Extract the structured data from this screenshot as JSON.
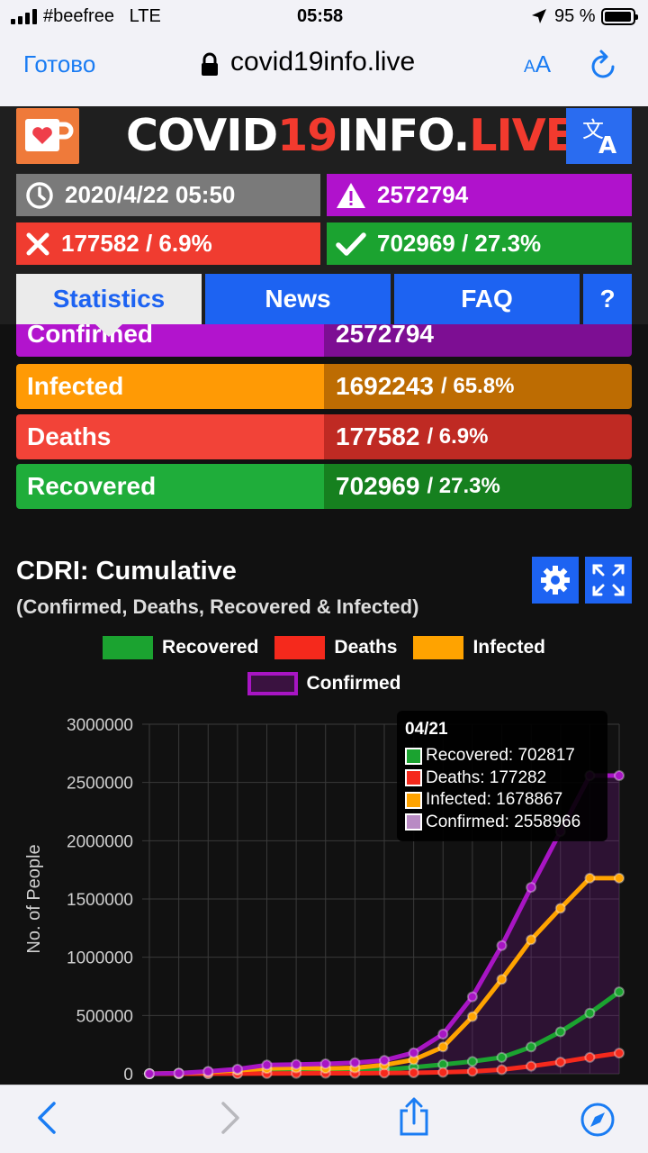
{
  "status_bar": {
    "carrier": "#beefree",
    "network": "LTE",
    "time": "05:58",
    "battery": "95 %",
    "battery_level": 0.95
  },
  "browser": {
    "done_label": "Готово",
    "url": "covid19info.live",
    "text_size_label": "AA"
  },
  "site": {
    "title_part1": "COVID",
    "title_part2": "19",
    "title_part3": "INFO.",
    "title_part4": "LIVE",
    "header_stats": {
      "updated": "2020/4/22 05:50",
      "confirmed": "2572794",
      "deaths": "177582 / 6.9%",
      "recovered": "702969 / 27.3%"
    },
    "tabs": {
      "statistics": "Statistics",
      "news": "News",
      "faq": "FAQ",
      "help": "?"
    }
  },
  "stats_table": [
    {
      "label": "Confirmed",
      "value": "2572794",
      "pct": ""
    },
    {
      "label": "Infected",
      "value": "1692243",
      "pct": "/ 65.8%"
    },
    {
      "label": "Deaths",
      "value": "177582",
      "pct": "/ 6.9%"
    },
    {
      "label": "Recovered",
      "value": "702969",
      "pct": "/ 27.3%"
    }
  ],
  "chart_heading": {
    "title": "CDRI: Cumulative",
    "subtitle": "(Confirmed, Deaths, Recovered & Infected)"
  },
  "legend": [
    {
      "name": "Recovered",
      "color": "#1ba330"
    },
    {
      "name": "Deaths",
      "color": "#f5291c"
    },
    {
      "name": "Infected",
      "color": "#ffa300"
    },
    {
      "name": "Confirmed",
      "color": "#a815c4"
    }
  ],
  "tooltip": {
    "title": "04/21",
    "lines": [
      "Recovered: 702817",
      "Deaths: 177282",
      "Infected: 1678867",
      "Confirmed: 2558966"
    ]
  },
  "chart_data": {
    "type": "line",
    "ylabel": "No. of People",
    "ylim": [
      0,
      3000000
    ],
    "yticks": [
      "3000000",
      "2500000",
      "2000000",
      "1500000",
      "1000000",
      "500000",
      "0"
    ],
    "series": [
      {
        "name": "Recovered",
        "color": "#1ba330",
        "values": [
          0,
          0,
          1000,
          5000,
          10000,
          15000,
          20000,
          25000,
          35000,
          55000,
          80000,
          105000,
          140000,
          230000,
          360000,
          520000,
          702817
        ]
      },
      {
        "name": "Deaths",
        "color": "#f5291c",
        "values": [
          0,
          0,
          500,
          1000,
          2000,
          3000,
          3500,
          4000,
          6000,
          8000,
          12000,
          20000,
          35000,
          65000,
          100000,
          140000,
          177282
        ]
      },
      {
        "name": "Infected",
        "color": "#ffa300",
        "values": [
          0,
          5000,
          15000,
          30000,
          45000,
          50000,
          45000,
          50000,
          75000,
          120000,
          230000,
          490000,
          810000,
          1150000,
          1420000,
          1678867,
          1678867
        ]
      },
      {
        "name": "Confirmed",
        "color": "#a815c4",
        "values": [
          0,
          5000,
          20000,
          40000,
          75000,
          80000,
          85000,
          95000,
          115000,
          180000,
          340000,
          660000,
          1100000,
          1600000,
          2080000,
          2558966,
          2558966
        ]
      }
    ]
  }
}
